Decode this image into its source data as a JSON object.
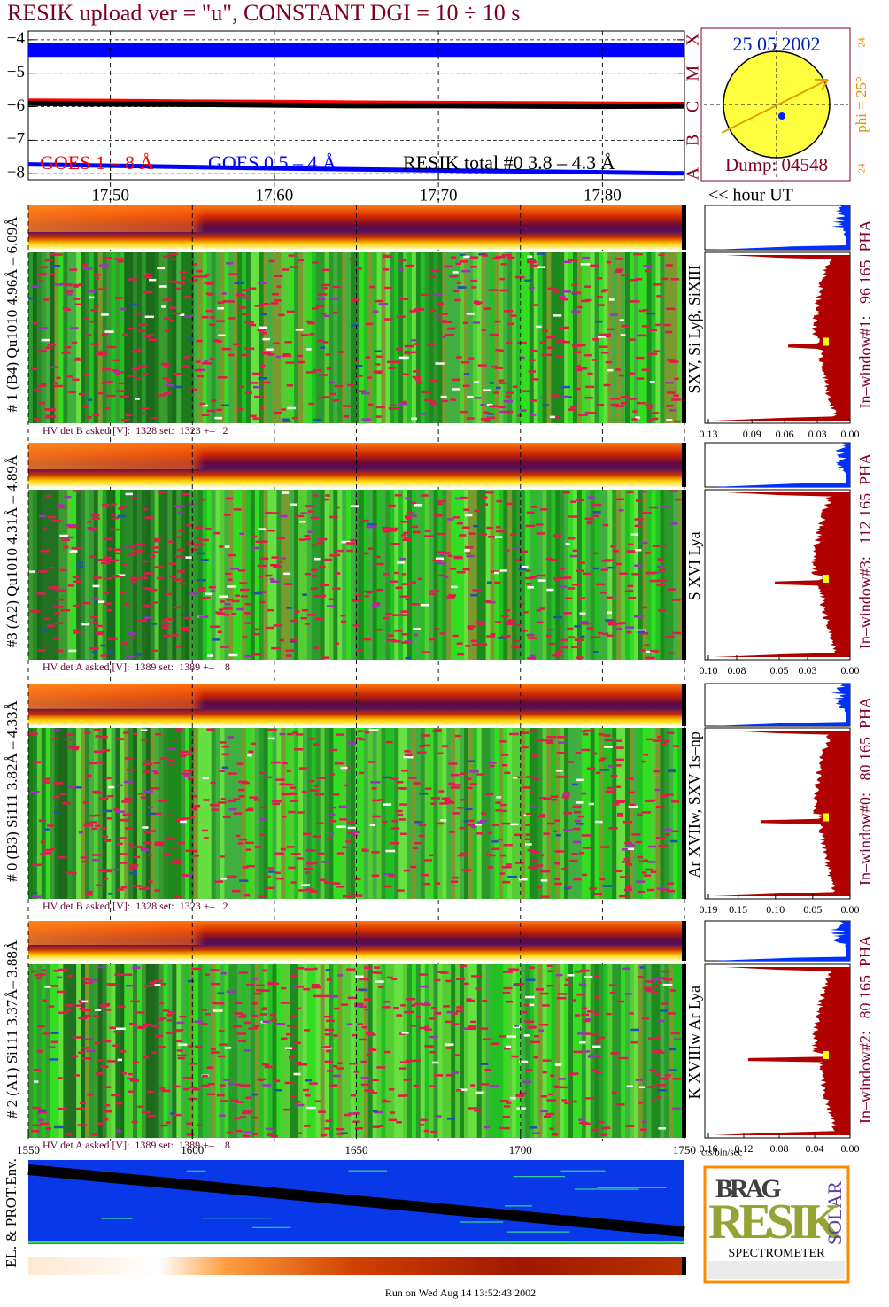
{
  "chart_data": {
    "type": "line",
    "title": "RESIK upload ver = \"u\", CONSTANT  DGI =  10 ÷  10 s",
    "x": [
      17.45,
      17.5,
      17.55,
      17.6,
      17.65,
      17.7,
      17.75,
      17.8,
      17.85
    ],
    "series": [
      {
        "name": "GOES 1 – 8 Å",
        "color": "#ff0000",
        "values": [
          -5.82,
          -5.83,
          -5.85,
          -5.86,
          -5.88,
          -5.89,
          -5.9,
          -5.91,
          -5.92
        ]
      },
      {
        "name": "GOES 0.5 – 4 Å",
        "color": "#0000ff",
        "values": [
          -7.72,
          -7.76,
          -7.8,
          -7.84,
          -7.87,
          -7.9,
          -7.93,
          -7.96,
          -7.99
        ]
      },
      {
        "name": "RESIK total #0  3.8 – 4.3 Å",
        "color": "#000000",
        "values": [
          -5.9,
          -5.92,
          -5.93,
          -5.95,
          -5.97,
          -5.97,
          -5.98,
          -5.99,
          -5.98
        ]
      },
      {
        "color": "#0000ff",
        "values": [
          -4.3,
          -4.3,
          -4.3,
          -4.3,
          -4.3,
          -4.3,
          -4.3,
          -4.3,
          -4.3
        ]
      }
    ],
    "xlim": [
      17.45,
      17.85
    ],
    "xticks": [
      {
        "value": 17.5,
        "label": "17.50"
      },
      {
        "value": 17.6,
        "label": "17.60"
      },
      {
        "value": 17.7,
        "label": "17.70"
      },
      {
        "value": 17.8,
        "label": "17.80"
      }
    ],
    "x_label": "<< hour UT",
    "ylim": [
      -8.18,
      -3.74
    ],
    "yticks": [
      {
        "value": -4,
        "label": "−4"
      },
      {
        "value": -5,
        "label": "−5"
      },
      {
        "value": -6,
        "label": "−6"
      },
      {
        "value": -7,
        "label": "−7"
      },
      {
        "value": -8,
        "label": "−8"
      }
    ],
    "y2lim": [
      -8.18,
      -3.74
    ],
    "y2ticks": [
      {
        "value": -8,
        "label": "A"
      },
      {
        "value": -7,
        "label": "B"
      },
      {
        "value": -6,
        "label": "C"
      },
      {
        "value": -5,
        "label": "M"
      },
      {
        "value": -4,
        "label": "X"
      }
    ],
    "grid": true
  },
  "sun": {
    "date": "25 05 2002",
    "dump": "Dump: 04548",
    "phi": "phi = 25°",
    "marks": [
      "24",
      "24"
    ]
  },
  "detectors": [
    {
      "label": "# 1 (B4) Qu1010 4.96Å – 6.09Å",
      "lines": "SXV, Si Lyβ, SiXIII",
      "hv": "HV det B asked [V]:  1328 set:  1323 +–   2",
      "window": "In–window#1:   96 165  PHA",
      "hist_xlim": [
        0.13,
        0
      ],
      "hist_ticks": [
        0.13,
        0.09,
        0.06,
        0.03,
        {
          "value": 0,
          "label": "0.00"
        }
      ]
    },
    {
      "label": "#3 (A2) Qu1010  4.31Å – 4.89Å",
      "lines": "S XVI Lya",
      "hv": "HV det A asked [V]:  1389 set:  1389 +–    8",
      "window": "In–window#3:   112 165  PHA",
      "hist_xlim": [
        0.1,
        0
      ],
      "hist_ticks": [
        {
          "value": 0.1,
          "label": "0.10"
        },
        0.08,
        0.05,
        0.03,
        {
          "value": 0,
          "label": "0.00"
        }
      ]
    },
    {
      "label": "# 0 (B3) Si111  3.82Å – 4.33Å",
      "lines": "Ar XVIIw,  SXV 1s–np",
      "hv": "HV det B asked [V]:  1328 set:  1323 +–   2",
      "window": "In–window#0:   80 165  PHA",
      "hist_xlim": [
        0.19,
        0
      ],
      "hist_ticks": [
        0.19,
        0.15,
        {
          "value": 0.1,
          "label": "0.10"
        },
        0.05,
        {
          "value": 0,
          "label": "0.00"
        }
      ]
    },
    {
      "label": "# 2 (A1) Si111  3.37Å– 3.88Å",
      "lines": "K XVIIIw  Ar Lya",
      "hv": "HV det A asked [V]:  1389 set:  1389 +–    8",
      "window": "In–window#2:   80 165  PHA",
      "hist_xlim": [
        0.16,
        0
      ],
      "hist_ticks": [
        0.16,
        0.12,
        0.08,
        0.04,
        {
          "value": 0,
          "label": "0.00"
        }
      ]
    }
  ],
  "hist_unit": "cts/bin/sec",
  "bin_axis": {
    "xlim": [
      1550,
      1750
    ],
    "xticks": [
      1550,
      1600,
      1650,
      1700,
      1750
    ]
  },
  "env_label": "EL. & PROT.Env.",
  "logo": {
    "bragg": "BRAG",
    "resik": "RESIK",
    "solar": "SOLAR",
    "name": "SPECTROMETER"
  },
  "footer": "Run on Wed Aug 14 13:52:43 2002"
}
